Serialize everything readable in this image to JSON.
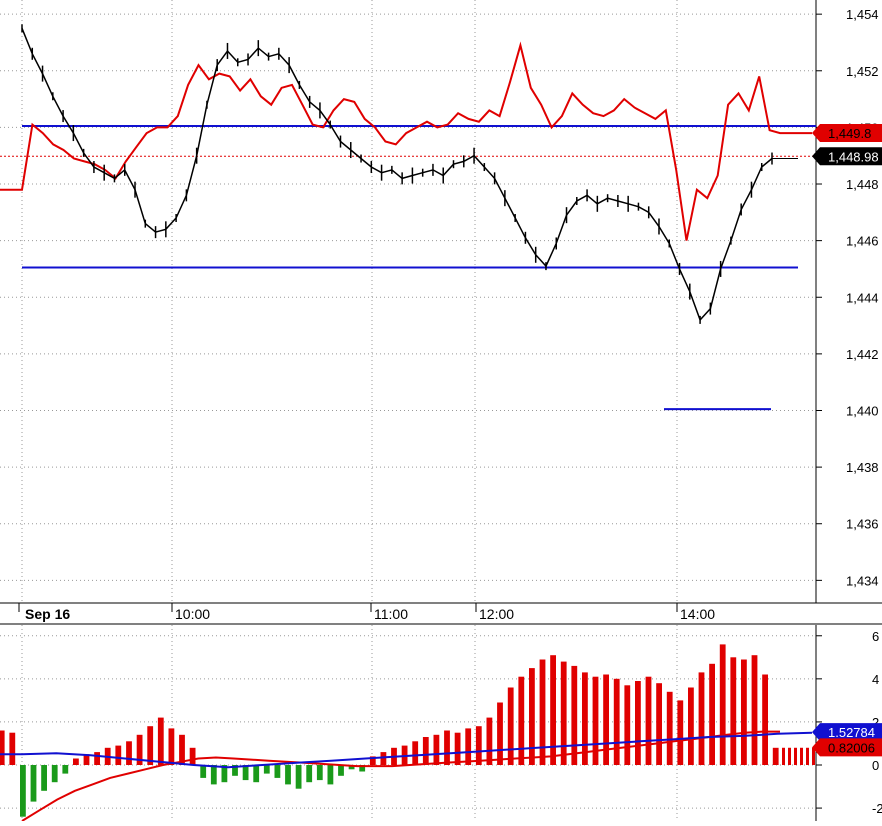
{
  "chart_data": [
    {
      "type": "line",
      "title": "",
      "date_label": "Sep 16",
      "time_labels": [
        "10:00",
        "11:00",
        "12:00",
        "14:00"
      ],
      "y_ticks": [
        "1,454",
        "1,452",
        "1,450",
        "1,448",
        "1,446",
        "1,444",
        "1,442",
        "1,440",
        "1,438",
        "1,436",
        "1,434"
      ],
      "y_tick_values": [
        1454,
        1452,
        1450,
        1448,
        1446,
        1444,
        1442,
        1440,
        1438,
        1436,
        1434
      ],
      "ylim": [
        1433.2,
        1454.5
      ],
      "grid": true,
      "price_series": {
        "name": "",
        "color": "#000000",
        "values": [
          1453.5,
          1452.6,
          1451.9,
          1451.1,
          1450.4,
          1449.8,
          1449.1,
          1448.6,
          1448.4,
          1448.2,
          1448.5,
          1447.8,
          1446.6,
          1446.3,
          1446.4,
          1446.8,
          1447.6,
          1449.0,
          1450.8,
          1452.2,
          1452.7,
          1452.3,
          1452.4,
          1452.8,
          1452.5,
          1452.6,
          1452.2,
          1451.5,
          1450.9,
          1450.6,
          1450.1,
          1449.5,
          1449.2,
          1448.9,
          1448.6,
          1448.4,
          1448.5,
          1448.2,
          1448.3,
          1448.4,
          1448.5,
          1448.3,
          1448.7,
          1448.8,
          1449.0,
          1448.6,
          1448.2,
          1447.5,
          1446.8,
          1446.1,
          1445.5,
          1445.1,
          1445.9,
          1446.9,
          1447.4,
          1447.6,
          1447.3,
          1447.5,
          1447.4,
          1447.3,
          1447.2,
          1447.0,
          1446.5,
          1445.9,
          1445.0,
          1444.2,
          1443.2,
          1443.6,
          1445.0,
          1446.0,
          1447.1,
          1447.8,
          1448.6,
          1448.9
        ]
      },
      "red_series": {
        "name": "",
        "color": "#e00000",
        "values": [
          1447.8,
          1450.1,
          1449.8,
          1449.4,
          1449.2,
          1448.9,
          1448.8,
          1448.7,
          1448.5,
          1448.2,
          1448.8,
          1449.3,
          1449.8,
          1450.0,
          1450.0,
          1450.4,
          1451.5,
          1452.2,
          1451.7,
          1451.9,
          1451.8,
          1451.3,
          1451.7,
          1451.1,
          1450.8,
          1451.4,
          1451.5,
          1450.8,
          1450.1,
          1450.0,
          1450.6,
          1451.0,
          1450.9,
          1450.3,
          1450.0,
          1449.5,
          1449.4,
          1449.8,
          1450.0,
          1450.2,
          1450.0,
          1450.1,
          1450.5,
          1450.3,
          1450.2,
          1450.6,
          1450.4,
          1451.6,
          1452.9,
          1451.4,
          1450.8,
          1450.0,
          1450.4,
          1451.2,
          1450.8,
          1450.5,
          1450.4,
          1450.6,
          1451.0,
          1450.7,
          1450.5,
          1450.3,
          1450.6,
          1448.5,
          1446.0,
          1447.8,
          1447.5,
          1448.3,
          1450.8,
          1451.2,
          1450.6,
          1451.8,
          1449.9,
          1449.8
        ],
        "last_label": "1,449.8"
      },
      "price_last_label": "1,448.98",
      "horizontal_lines": [
        {
          "name": "resistance",
          "value": 1450.05,
          "color": "#1010d0"
        },
        {
          "name": "support",
          "value": 1445.05,
          "color": "#1010d0"
        },
        {
          "name": "target",
          "value": 1440.05,
          "color": "#1010d0"
        }
      ],
      "reference_line": {
        "value": 1448.98,
        "color": "#e00000"
      }
    },
    {
      "type": "bar",
      "y_ticks": [
        "6",
        "4",
        "2",
        "0",
        "-2"
      ],
      "y_tick_values": [
        6,
        4,
        2,
        0,
        -2
      ],
      "ylim": [
        -2.6,
        6.5
      ],
      "grid": true,
      "histogram": {
        "name": "",
        "positive_color": "#e00000",
        "negative_color": "#1a9a1a",
        "values": [
          1.6,
          1.5,
          -2.4,
          -1.7,
          -1.2,
          -0.8,
          -0.4,
          0.3,
          0.5,
          0.6,
          0.8,
          0.9,
          1.1,
          1.4,
          1.8,
          2.2,
          1.7,
          1.4,
          0.8,
          -0.6,
          -0.9,
          -0.8,
          -0.5,
          -0.7,
          -0.8,
          -0.4,
          -0.6,
          -0.9,
          -1.1,
          -0.8,
          -0.7,
          -0.9,
          -0.5,
          -0.2,
          -0.3,
          0.4,
          0.6,
          0.8,
          0.9,
          1.1,
          1.3,
          1.4,
          1.6,
          1.5,
          1.7,
          1.8,
          2.2,
          2.9,
          3.6,
          4.1,
          4.5,
          4.9,
          5.1,
          4.8,
          4.6,
          4.3,
          4.1,
          4.2,
          4.0,
          3.7,
          3.9,
          4.1,
          3.8,
          3.4,
          3.0,
          3.6,
          4.3,
          4.7,
          5.6,
          5.0,
          4.9,
          5.1,
          4.2,
          0.8
        ]
      },
      "signal_series": {
        "name": "",
        "color": "#e00000",
        "values": [
          -2.6,
          -2.1,
          -1.6,
          -1.2,
          -0.9,
          -0.6,
          -0.4,
          -0.2,
          0.0,
          0.15,
          0.3,
          0.35,
          0.3,
          0.25,
          0.2,
          0.15,
          0.1,
          0.05,
          0.0,
          -0.05,
          -0.05,
          -0.05,
          0.0,
          0.05,
          0.1,
          0.15,
          0.2,
          0.25,
          0.3,
          0.35,
          0.4,
          0.5,
          0.6,
          0.7,
          0.8,
          0.9,
          1.0,
          1.1,
          1.2,
          1.3,
          1.4,
          1.5,
          1.55,
          1.55
        ]
      },
      "blue_series": {
        "name": "",
        "color": "#1010d0",
        "values": [
          0.5,
          0.55,
          0.45,
          0.3,
          0.15,
          0.0,
          -0.1,
          0.0,
          0.1,
          0.2,
          0.3,
          0.4,
          0.5,
          0.6,
          0.7,
          0.8,
          0.9,
          1.0,
          1.1,
          1.2,
          1.3,
          1.35,
          1.45,
          1.5
        ]
      },
      "last_labels": {
        "blue": "1.52784",
        "red": "0.82006"
      }
    }
  ]
}
